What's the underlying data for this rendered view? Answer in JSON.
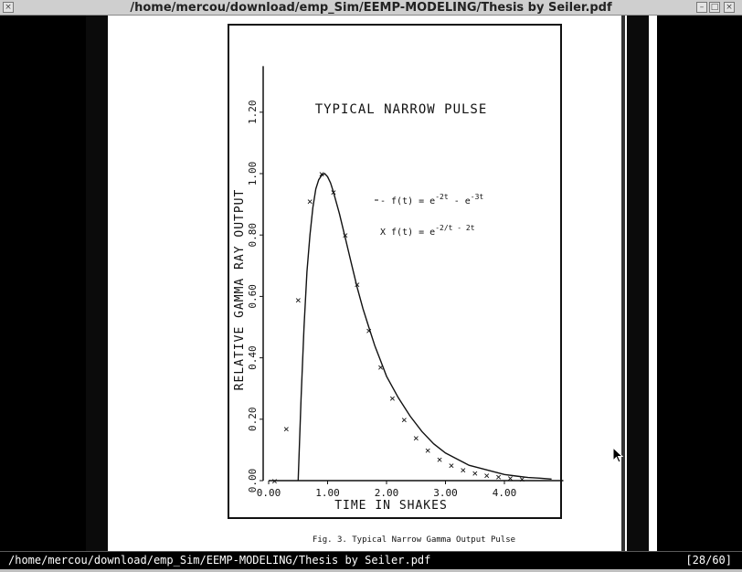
{
  "window": {
    "title": "/home/mercou/download/emp_Sim/EEMP-MODELING/Thesis by Seiler.pdf",
    "menu_icon": "window-menu-icon",
    "buttons": [
      "minimize-icon",
      "maximize-icon",
      "close-icon"
    ]
  },
  "statusbar": {
    "path": "/home/mercou/download/emp_Sim/EEMP-MODELING/Thesis by Seiler.pdf",
    "page": "[28/60]"
  },
  "figure": {
    "caption": "Fig. 3.  Typical Narrow Gamma Output Pulse"
  },
  "chart_data": {
    "type": "line",
    "title": "TYPICAL NARROW PULSE",
    "xlabel": "TIME IN SHAKES",
    "ylabel": "RELATIVE GAMMA RAY OUTPUT",
    "xlim": [
      0,
      5
    ],
    "ylim": [
      0,
      1.2
    ],
    "x_ticks": [
      "0.00",
      "1.00",
      "2.00",
      "3.00",
      "4.00"
    ],
    "x_tick_values": [
      0,
      1,
      2,
      3,
      4
    ],
    "y_ticks": [
      "0.00",
      "0.20",
      "0.40",
      "0.60",
      "0.80",
      "1.00",
      "1.20"
    ],
    "y_tick_values": [
      0,
      0.2,
      0.4,
      0.6,
      0.8,
      1.0,
      1.2
    ],
    "legend": [
      {
        "marker": "line",
        "base": "- f(t) = e",
        "exp1": "-2t",
        "mid": " - e",
        "exp2": "-3t"
      },
      {
        "marker": "x",
        "base": "X f(t) = e",
        "exp1": "-2/t - 2t",
        "mid": "",
        "exp2": ""
      }
    ],
    "series": [
      {
        "name": "- f(t) = e^-2t - e^-3t",
        "style": "line",
        "x": [
          0.5,
          0.55,
          0.6,
          0.65,
          0.7,
          0.75,
          0.8,
          0.85,
          0.9,
          0.95,
          1.0,
          1.05,
          1.1,
          1.2,
          1.3,
          1.4,
          1.5,
          1.6,
          1.7,
          1.8,
          1.9,
          2.0,
          2.2,
          2.4,
          2.6,
          2.8,
          3.0,
          3.2,
          3.4,
          3.6,
          3.8,
          4.0,
          4.2,
          4.4,
          4.6,
          4.8
        ],
        "y": [
          0.0,
          0.27,
          0.5,
          0.68,
          0.8,
          0.89,
          0.95,
          0.98,
          0.995,
          1.0,
          0.99,
          0.97,
          0.94,
          0.87,
          0.79,
          0.71,
          0.63,
          0.56,
          0.5,
          0.44,
          0.39,
          0.34,
          0.27,
          0.21,
          0.16,
          0.12,
          0.09,
          0.07,
          0.05,
          0.04,
          0.03,
          0.02,
          0.015,
          0.01,
          0.008,
          0.005
        ]
      },
      {
        "name": "X f(t) = e^-2/t - 2t",
        "style": "x",
        "x": [
          0.1,
          0.3,
          0.5,
          0.7,
          0.9,
          1.1,
          1.3,
          1.5,
          1.7,
          1.9,
          2.1,
          2.3,
          2.5,
          2.7,
          2.9,
          3.1,
          3.3,
          3.5,
          3.7,
          3.9,
          4.1,
          4.3
        ],
        "y": [
          0.0,
          0.17,
          0.59,
          0.91,
          1.0,
          0.94,
          0.8,
          0.64,
          0.49,
          0.37,
          0.27,
          0.2,
          0.14,
          0.1,
          0.07,
          0.05,
          0.035,
          0.025,
          0.018,
          0.013,
          0.009,
          0.006
        ]
      }
    ]
  },
  "cursor": "mouse-pointer-icon"
}
